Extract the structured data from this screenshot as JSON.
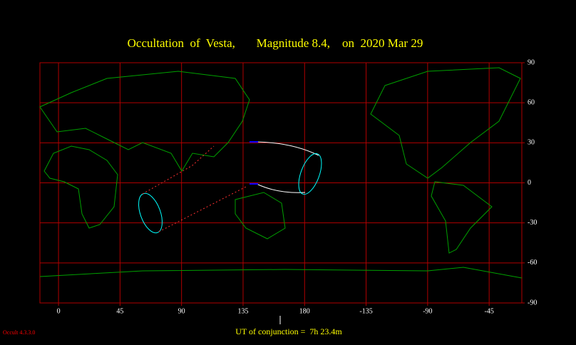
{
  "chart_data": {
    "type": "map",
    "title": "Occultation  of  Vesta,       Magnitude 8.4,    on  2020 Mar 29",
    "xlim": [
      -13.6,
      338.9
    ],
    "ylim": [
      -90,
      90
    ],
    "xticks": [
      0,
      45,
      90,
      135,
      180,
      {
        "value": 225,
        "label": "-135"
      },
      {
        "value": 270,
        "label": "-90"
      },
      {
        "value": 315,
        "label": "-45"
      }
    ],
    "yticks": [
      90,
      60,
      30,
      0,
      -30,
      -60,
      -90
    ],
    "grid": true,
    "conjunction_label": "UT of conjunction =  7h 23.4m",
    "version": "Occult 4.3.3.0"
  }
}
